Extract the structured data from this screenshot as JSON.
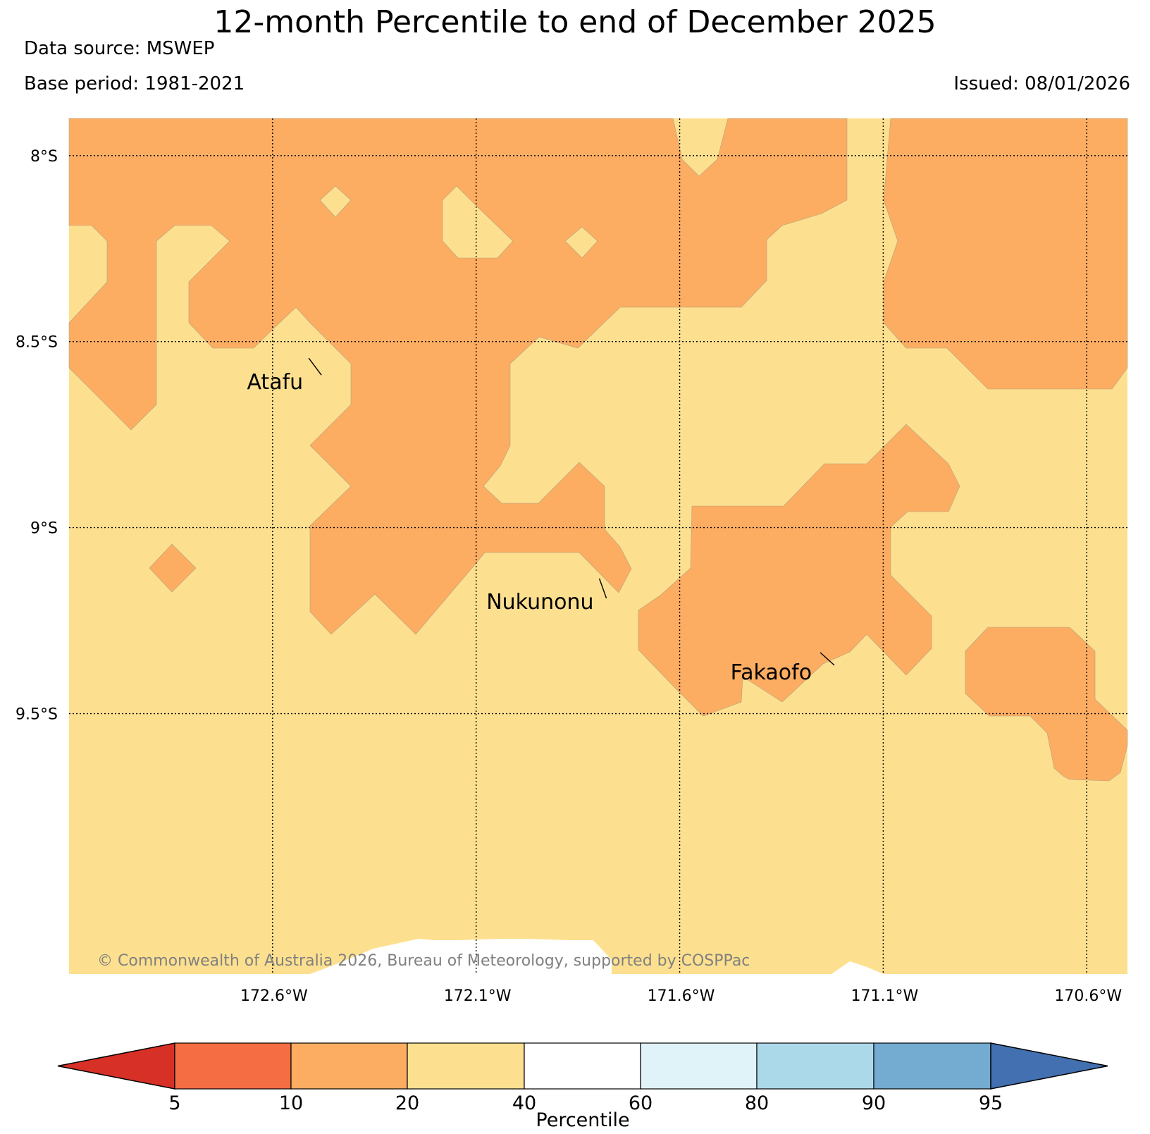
{
  "title": "12-month Percentile to end of December 2025",
  "data_source": "Data source: MSWEP",
  "base_period": "Base period: 1981-2021",
  "issued": "Issued: 08/01/2026",
  "copyright": "© Commonwealth of Australia 2026, Bureau of Meteorology, supported by COSPPac",
  "map": {
    "lon_range": [
      -173.1,
      -170.5
    ],
    "lat_range": [
      -10.2,
      -7.9
    ],
    "lon_ticks": [
      {
        "value": -172.6,
        "label": "172.6°W"
      },
      {
        "value": -172.1,
        "label": "172.1°W"
      },
      {
        "value": -171.6,
        "label": "171.6°W"
      },
      {
        "value": -171.1,
        "label": "171.1°W"
      },
      {
        "value": -170.6,
        "label": "170.6°W"
      }
    ],
    "lat_ticks": [
      {
        "value": -8.0,
        "label": "8°S"
      },
      {
        "value": -8.5,
        "label": "8.5°S"
      },
      {
        "value": -9.0,
        "label": "9°S"
      },
      {
        "value": -9.5,
        "label": "9.5°S"
      }
    ],
    "places": [
      {
        "name": "Atafu",
        "lon": -172.48,
        "lat": -8.59
      },
      {
        "name": "Nukunonu",
        "lon": -171.78,
        "lat": -9.19
      },
      {
        "name": "Fakaofo",
        "lon": -171.22,
        "lat": -9.37
      }
    ],
    "colors": {
      "band_10_20": "#fcad62",
      "band_20_40": "#fde08f",
      "no_data": "#ffffff"
    }
  },
  "colorbar": {
    "label": "Percentile",
    "ticks": [
      "5",
      "10",
      "20",
      "40",
      "60",
      "80",
      "90",
      "95"
    ],
    "low_extend_color": "#d73027",
    "high_extend_color": "#4270b0",
    "bins": [
      {
        "range": "5-10",
        "color": "#f46d43"
      },
      {
        "range": "10-20",
        "color": "#fcad62"
      },
      {
        "range": "20-40",
        "color": "#fde08f"
      },
      {
        "range": "40-60",
        "color": "#ffffff"
      },
      {
        "range": "60-80",
        "color": "#e0f3f8"
      },
      {
        "range": "80-90",
        "color": "#abd9e9"
      },
      {
        "range": "90-95",
        "color": "#74abd0"
      }
    ]
  }
}
